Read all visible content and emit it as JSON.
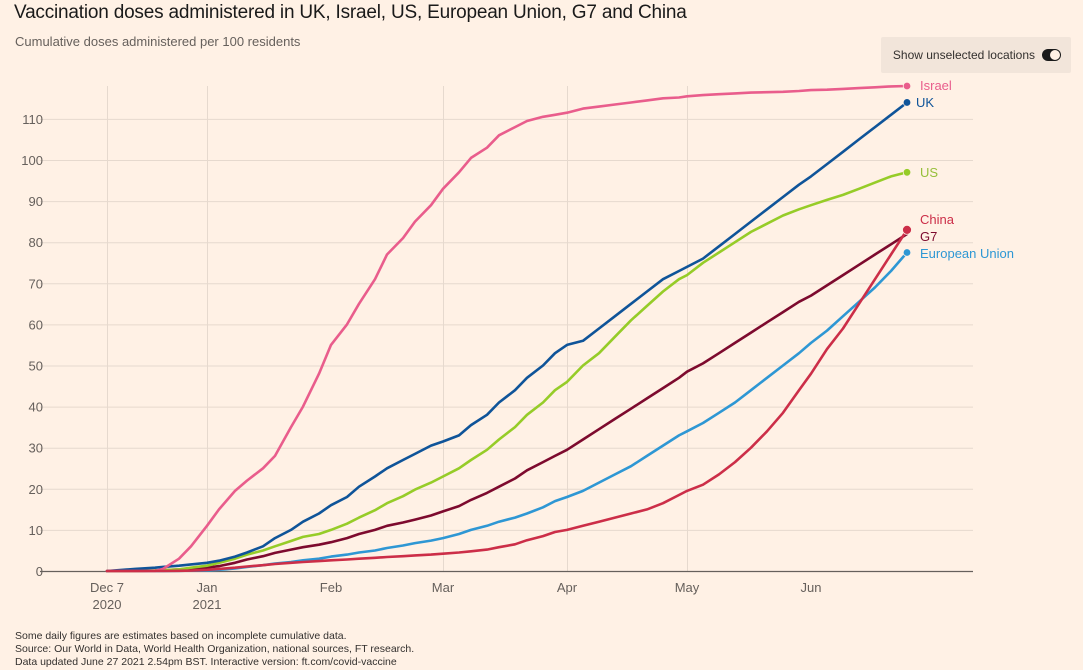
{
  "header": {
    "title": "Vaccination doses administered in UK, Israel, US, European Union, G7 and China",
    "subtitle": "Cumulative doses administered per 100 residents"
  },
  "controls": {
    "toggle_label": "Show unselected locations",
    "toggle_state": "on"
  },
  "footnotes": [
    "Some daily figures are estimates based on incomplete cumulative data.",
    "Source: Our World in Data, World Health Organization, national sources, FT research.",
    "Data updated June 27 2021 2.54pm BST. Interactive version: ft.com/covid-vaccine"
  ],
  "chart_data": {
    "type": "line",
    "title": "Vaccination doses administered in UK, Israel, US, European Union, G7 and China",
    "subtitle": "Cumulative doses administered per 100 residents",
    "xlabel": "",
    "ylabel": "",
    "x_unit": "days since 2020-12-07",
    "xlim": [
      0,
      216
    ],
    "ylim": [
      0,
      118
    ],
    "grid": true,
    "y_ticks": [
      0,
      10,
      20,
      30,
      40,
      50,
      60,
      70,
      80,
      90,
      100,
      110
    ],
    "x_ticks": [
      {
        "day": 0,
        "label": [
          "Dec 7",
          "2020"
        ],
        "gridline": true
      },
      {
        "day": 25,
        "label": [
          "Jan",
          "2021"
        ],
        "gridline": true
      },
      {
        "day": 56,
        "label": [
          "Feb"
        ],
        "gridline": false
      },
      {
        "day": 84,
        "label": [
          "Mar"
        ],
        "gridline": true
      },
      {
        "day": 115,
        "label": [
          "Apr"
        ],
        "gridline": true
      },
      {
        "day": 145,
        "label": [
          "May"
        ],
        "gridline": true
      },
      {
        "day": 176,
        "label": [
          "Jun"
        ],
        "gridline": false
      }
    ],
    "x": [
      0,
      7,
      12,
      14,
      18,
      21,
      25,
      28,
      32,
      35,
      39,
      42,
      46,
      49,
      53,
      56,
      60,
      63,
      67,
      70,
      74,
      77,
      81,
      84,
      88,
      91,
      95,
      98,
      102,
      105,
      109,
      112,
      115,
      119,
      123,
      127,
      131,
      135,
      139,
      143,
      145,
      149,
      153,
      157,
      161,
      165,
      169,
      173,
      176,
      180,
      184,
      188,
      192,
      196,
      200
    ],
    "series": [
      {
        "name": "Israel",
        "color": "#e95d8c",
        "end_marker": true,
        "values": [
          0,
          0,
          0,
          0.5,
          3,
          6,
          11,
          15,
          19.5,
          22,
          25,
          28,
          35,
          40,
          48,
          55,
          60,
          65,
          71,
          77,
          81,
          85,
          89,
          93,
          97,
          100.5,
          103,
          106,
          108,
          109.5,
          110.5,
          111,
          111.5,
          112.5,
          113,
          113.5,
          114,
          114.5,
          115,
          115.2,
          115.5,
          115.8,
          116,
          116.2,
          116.4,
          116.5,
          116.6,
          116.8,
          117,
          117.1,
          117.3,
          117.5,
          117.7,
          117.9,
          118
        ]
      },
      {
        "name": "UK",
        "color": "#0f5499",
        "end_marker": true,
        "values": [
          0,
          0.5,
          0.8,
          1,
          1.3,
          1.6,
          2,
          2.5,
          3.5,
          4.5,
          6,
          8,
          10,
          12,
          14,
          16,
          18,
          20.5,
          23,
          25,
          27,
          28.5,
          30.5,
          31.5,
          33,
          35.5,
          38,
          41,
          44,
          47,
          50,
          53,
          55,
          56,
          59,
          62,
          65,
          68,
          71,
          73,
          74,
          76,
          79,
          82,
          85,
          88,
          91,
          94,
          96,
          99,
          102,
          105,
          108,
          111,
          114
        ]
      },
      {
        "name": "US",
        "color": "#96cc28",
        "end_marker": true,
        "values": [
          0,
          0,
          0.1,
          0.2,
          0.4,
          0.8,
          1.3,
          2,
          3,
          4,
          5,
          6,
          7.3,
          8.3,
          9,
          10,
          11.5,
          13,
          14.8,
          16.5,
          18.2,
          19.8,
          21.5,
          23,
          25,
          27,
          29.5,
          32,
          35,
          38,
          41,
          44,
          46,
          50,
          53,
          57,
          61,
          64.5,
          68,
          71,
          72,
          75,
          77.5,
          80,
          82.5,
          84.5,
          86.5,
          88,
          89,
          90.3,
          91.5,
          93,
          94.5,
          96,
          97
        ]
      },
      {
        "name": "G7",
        "color": "#7d0a2e",
        "end_marker": false,
        "values": [
          0,
          0,
          0.1,
          0.2,
          0.4,
          0.6,
          0.8,
          1.2,
          2,
          2.8,
          3.6,
          4.4,
          5.2,
          5.8,
          6.4,
          7,
          8,
          9,
          10,
          11,
          11.8,
          12.5,
          13.5,
          14.5,
          15.8,
          17.3,
          19,
          20.5,
          22.5,
          24.5,
          26.5,
          28,
          29.5,
          32,
          34.5,
          37,
          39.5,
          42,
          44.5,
          47,
          48.5,
          50.5,
          53,
          55.5,
          58,
          60.5,
          63,
          65.5,
          67,
          69.5,
          72,
          74.5,
          77,
          79.5,
          82
        ]
      },
      {
        "name": "European Union",
        "color": "#2e97d4",
        "end_marker": true,
        "values": [
          0,
          0,
          0,
          0,
          0.05,
          0.1,
          0.15,
          0.3,
          0.6,
          1,
          1.4,
          1.8,
          2.2,
          2.6,
          3,
          3.5,
          4,
          4.5,
          5,
          5.6,
          6.2,
          6.8,
          7.4,
          8,
          9,
          10,
          11,
          12,
          13,
          14,
          15.5,
          17,
          18,
          19.5,
          21.5,
          23.5,
          25.5,
          28,
          30.5,
          33,
          34,
          36,
          38.5,
          41,
          44,
          47,
          50,
          53,
          55.5,
          58.5,
          62,
          65.5,
          69,
          73,
          77.5
        ]
      },
      {
        "name": "China",
        "color": "#cc2e48",
        "end_marker": true,
        "values": [
          0,
          0,
          0,
          0,
          0.05,
          0.1,
          0.3,
          0.5,
          0.8,
          1.1,
          1.4,
          1.7,
          2,
          2.2,
          2.4,
          2.6,
          2.8,
          3,
          3.2,
          3.4,
          3.6,
          3.8,
          4,
          4.2,
          4.5,
          4.8,
          5.2,
          5.8,
          6.5,
          7.5,
          8.5,
          9.5,
          10,
          11,
          12,
          13,
          14,
          15,
          16.5,
          18.5,
          19.5,
          21,
          23.5,
          26.5,
          30,
          34,
          38.5,
          44,
          48,
          54,
          59,
          65,
          71,
          77,
          83
        ]
      }
    ],
    "legend": "inline-right-end"
  }
}
